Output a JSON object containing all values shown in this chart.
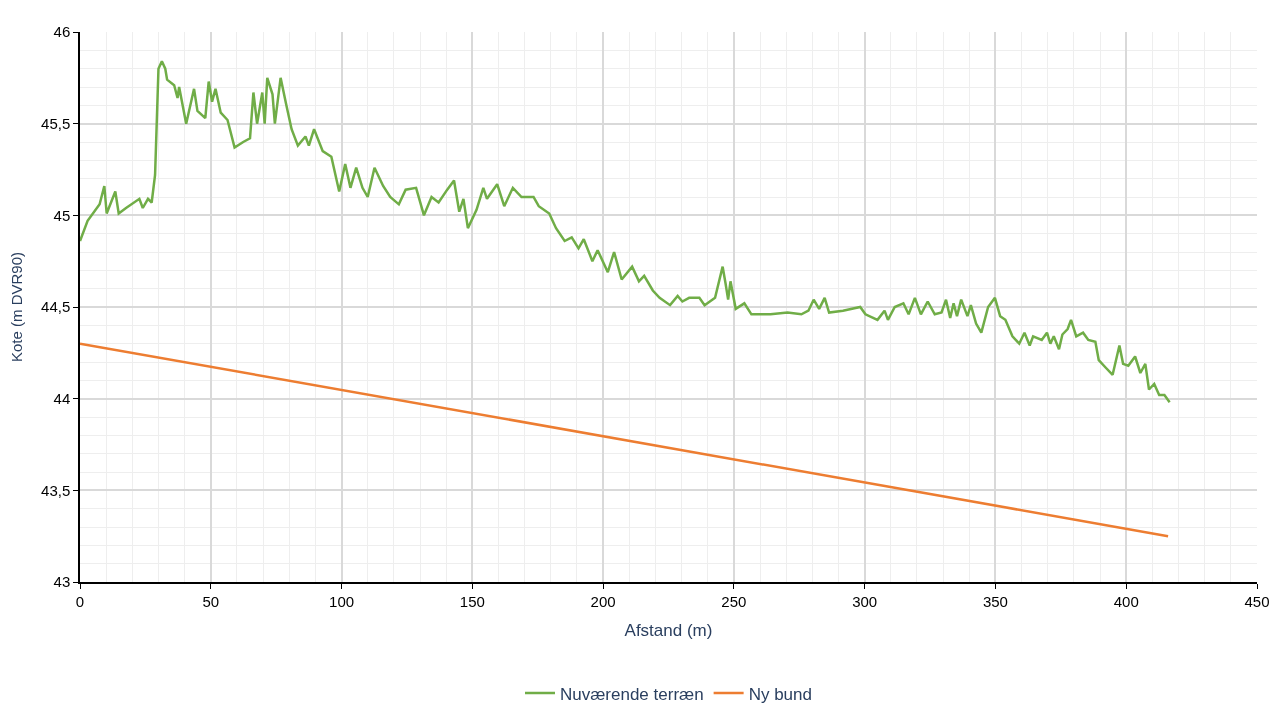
{
  "chart_data": {
    "type": "line",
    "xlabel": "Afstand (m)",
    "ylabel": "Kote (m DVR90)",
    "xlim": [
      0,
      450
    ],
    "xticks": [
      0,
      50,
      100,
      150,
      200,
      250,
      300,
      350,
      400,
      450
    ],
    "ylim": [
      43,
      46
    ],
    "yticks": [
      {
        "value": 43,
        "label": "43"
      },
      {
        "value": 43.5,
        "label": "43,5"
      },
      {
        "value": 44,
        "label": "44"
      },
      {
        "value": 44.5,
        "label": "44,5"
      },
      {
        "value": 45,
        "label": "45"
      },
      {
        "value": 45.5,
        "label": "45,5"
      },
      {
        "value": 46,
        "label": "46"
      }
    ],
    "grid": true,
    "legend": "bottom",
    "marker": "none",
    "line_style": "solid",
    "series": [
      {
        "name": "Nuværende terræn",
        "color": "#70ad47",
        "x": [
          0,
          2.9,
          7.5,
          9.3,
          10.2,
          13.5,
          14.8,
          17.6,
          22.7,
          24,
          26,
          27.4,
          28.7,
          30,
          31.3,
          32.6,
          33.3,
          36,
          37.3,
          37.9,
          40.6,
          43.6,
          44.9,
          47.9,
          49.2,
          50.5,
          51.8,
          53.8,
          56.4,
          59.1,
          62.4,
          65,
          66.3,
          67.7,
          69.7,
          70.6,
          71.6,
          73.6,
          74.5,
          76.7,
          78.9,
          80.9,
          83.3,
          86.2,
          87.5,
          89.5,
          92.8,
          96.1,
          99.1,
          101.4,
          103.4,
          105.6,
          108,
          110,
          112.6,
          115.9,
          118.6,
          121.9,
          124.5,
          128.5,
          131.5,
          134.4,
          137.1,
          140.4,
          143,
          145,
          146.6,
          148.3,
          151.6,
          154.2,
          155.6,
          159.5,
          162.2,
          165.5,
          168.8,
          173.4,
          175.4,
          179.4,
          182,
          185.3,
          188,
          190.6,
          192.6,
          195.9,
          197.9,
          201.8,
          204.2,
          207.1,
          211.1,
          213.7,
          215.7,
          219,
          221.6,
          225.6,
          228.5,
          230.3,
          232.9,
          236.8,
          238.8,
          242.8,
          245.7,
          246.8,
          247.8,
          248.7,
          250.7,
          254,
          256.7,
          264,
          270.5,
          275.8,
          278.5,
          280.5,
          282.6,
          284.7,
          286.4,
          291.7,
          298.3,
          300.3,
          304.9,
          307.6,
          308.9,
          311.5,
          314.8,
          316.8,
          319.2,
          321.5,
          324.1,
          326.8,
          329.4,
          331.1,
          332.7,
          334,
          335.3,
          336.9,
          339.3,
          340.6,
          342.6,
          344.6,
          347.2,
          349.8,
          351.8,
          353.8,
          356.5,
          359.1,
          361.1,
          363.1,
          364.4,
          367.7,
          369.7,
          371,
          372.3,
          374.3,
          375.6,
          377.6,
          378.9,
          380.9,
          383.5,
          385.5,
          388.2,
          389.5,
          392.1,
          394.8,
          397.4,
          398.8,
          400.8,
          403.4,
          405.4,
          407.3,
          408.7,
          410.7,
          412.6,
          414.6,
          416.6
        ],
        "values": [
          44.86,
          44.97,
          45.06,
          45.16,
          45.01,
          45.13,
          45.01,
          45.04,
          45.09,
          45.04,
          45.09,
          45.07,
          45.22,
          45.8,
          45.84,
          45.8,
          45.74,
          45.71,
          45.64,
          45.7,
          45.5,
          45.69,
          45.57,
          45.53,
          45.73,
          45.62,
          45.69,
          45.56,
          45.52,
          45.37,
          45.4,
          45.42,
          45.67,
          45.5,
          45.67,
          45.5,
          45.75,
          45.66,
          45.5,
          45.75,
          45.6,
          45.47,
          45.38,
          45.43,
          45.38,
          45.47,
          45.35,
          45.32,
          45.13,
          45.28,
          45.15,
          45.26,
          45.15,
          45.1,
          45.26,
          45.16,
          45.1,
          45.06,
          45.14,
          45.15,
          45.0,
          45.1,
          45.07,
          45.14,
          45.19,
          45.02,
          45.09,
          44.93,
          45.03,
          45.15,
          45.09,
          45.17,
          45.05,
          45.15,
          45.1,
          45.1,
          45.05,
          45.01,
          44.93,
          44.86,
          44.88,
          44.82,
          44.87,
          44.75,
          44.81,
          44.69,
          44.8,
          44.65,
          44.72,
          44.64,
          44.67,
          44.59,
          44.55,
          44.51,
          44.56,
          44.53,
          44.55,
          44.55,
          44.51,
          44.55,
          44.72,
          44.63,
          44.54,
          44.64,
          44.49,
          44.52,
          44.46,
          44.46,
          44.47,
          44.46,
          44.48,
          44.54,
          44.49,
          44.55,
          44.47,
          44.48,
          44.5,
          44.46,
          44.43,
          44.48,
          44.43,
          44.5,
          44.52,
          44.46,
          44.55,
          44.46,
          44.53,
          44.46,
          44.47,
          44.54,
          44.44,
          44.52,
          44.45,
          44.54,
          44.45,
          44.51,
          44.41,
          44.36,
          44.5,
          44.55,
          44.45,
          44.43,
          44.34,
          44.3,
          44.36,
          44.29,
          44.34,
          44.32,
          44.36,
          44.3,
          44.34,
          44.27,
          44.35,
          44.38,
          44.43,
          44.34,
          44.36,
          44.32,
          44.31,
          44.21,
          44.17,
          44.13,
          44.29,
          44.19,
          44.18,
          44.23,
          44.14,
          44.19,
          44.05,
          44.08,
          44.02,
          44.02,
          43.98
        ]
      },
      {
        "name": "Ny bund",
        "color": "#ed7d31",
        "x": [
          0,
          416
        ],
        "values": [
          44.3,
          43.25
        ]
      }
    ]
  }
}
